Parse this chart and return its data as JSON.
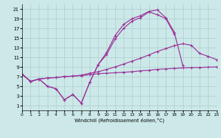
{
  "bg_color": "#cce8e8",
  "grid_color": "#aacccc",
  "line_color": "#993399",
  "xlim": [
    0,
    23
  ],
  "ylim": [
    0,
    22
  ],
  "xticks": [
    0,
    1,
    2,
    3,
    4,
    5,
    6,
    7,
    8,
    9,
    10,
    11,
    12,
    13,
    14,
    15,
    16,
    17,
    18,
    19,
    20,
    21,
    22,
    23
  ],
  "yticks": [
    1,
    3,
    5,
    7,
    9,
    11,
    13,
    15,
    17,
    19,
    21
  ],
  "xlabel": "Windchill (Refroidissement éolien,°C)",
  "line1_x": [
    0,
    1,
    2,
    3,
    4,
    5,
    6,
    7,
    8,
    9,
    10,
    11,
    12,
    13,
    14,
    15,
    16,
    17,
    18,
    19,
    20,
    21,
    22,
    23
  ],
  "line1_y": [
    7.5,
    6.0,
    6.5,
    6.7,
    6.8,
    7.0,
    7.1,
    7.2,
    7.4,
    7.6,
    7.7,
    7.8,
    7.9,
    8.0,
    8.2,
    8.3,
    8.5,
    8.6,
    8.7,
    8.8,
    8.85,
    8.9,
    8.95,
    9.0
  ],
  "line2_x": [
    0,
    1,
    2,
    3,
    4,
    5,
    6,
    7,
    8,
    9,
    10,
    11,
    12,
    13,
    14,
    15,
    16,
    17,
    18,
    19,
    20,
    21,
    22,
    23
  ],
  "line2_y": [
    7.5,
    6.0,
    6.5,
    6.7,
    6.8,
    7.0,
    7.1,
    7.3,
    7.7,
    8.0,
    8.5,
    9.0,
    9.6,
    10.2,
    10.8,
    11.5,
    12.2,
    12.8,
    13.4,
    13.8,
    13.5,
    11.8,
    11.2,
    10.5
  ],
  "line3_x": [
    0,
    1,
    2,
    3,
    4,
    5,
    6,
    7,
    8,
    9,
    10,
    11,
    12,
    13,
    14,
    15,
    16,
    17,
    18,
    19,
    20,
    21,
    22,
    23
  ],
  "line3_y": [
    7.5,
    6.0,
    6.5,
    5.0,
    4.5,
    2.2,
    3.3,
    1.5,
    5.8,
    9.5,
    12.0,
    15.5,
    17.8,
    19.0,
    19.6,
    20.5,
    20.8,
    19.2,
    16.2,
    9.3,
    null,
    null,
    null,
    null
  ],
  "line4_x": [
    0,
    1,
    2,
    3,
    4,
    5,
    6,
    7,
    8,
    9,
    10,
    11,
    12,
    13,
    14,
    15,
    16,
    17,
    18,
    19,
    20,
    21,
    22,
    23
  ],
  "line4_y": [
    7.5,
    6.0,
    6.5,
    5.0,
    4.5,
    2.2,
    3.3,
    1.5,
    5.8,
    9.5,
    11.6,
    14.8,
    17.0,
    18.5,
    19.2,
    20.4,
    19.8,
    19.0,
    15.8,
    null,
    null,
    null,
    null,
    null
  ]
}
